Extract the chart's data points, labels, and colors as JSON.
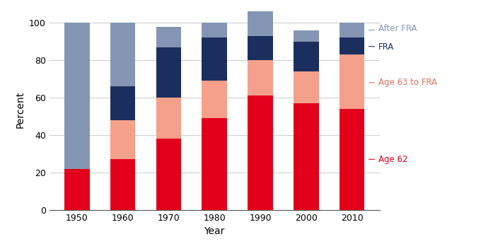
{
  "years": [
    "1950",
    "1960",
    "1970",
    "1980",
    "1990",
    "2000",
    "2010"
  ],
  "age62": [
    22,
    27,
    38,
    49,
    61,
    57,
    54
  ],
  "age63_to_fra": [
    0,
    21,
    22,
    20,
    19,
    17,
    29
  ],
  "fra": [
    0,
    18,
    27,
    23,
    13,
    16,
    9
  ],
  "after_fra": [
    78,
    34,
    11,
    8,
    13,
    6,
    8
  ],
  "colors": {
    "age62": "#e2001a",
    "age63_to_fra": "#f4a08a",
    "fra": "#1b2f5e",
    "after_fra": "#8496b4"
  },
  "legend_labels": {
    "after_fra": "After FRA",
    "fra": "FRA",
    "age63_to_fra": "Age 63 to FRA",
    "age62": "Age 62"
  },
  "annot_colors": {
    "after_fra": "#8496b4",
    "fra": "#1b2f5e",
    "age63_to_fra": "#e07060",
    "age62": "#e2001a"
  },
  "ylabel": "Percent",
  "xlabel": "Year",
  "ylim": [
    0,
    105
  ],
  "yticks": [
    0,
    20,
    40,
    60,
    80,
    100
  ],
  "bar_width": 0.55,
  "fig_width": 6.97,
  "fig_height": 3.45,
  "dpi": 100
}
